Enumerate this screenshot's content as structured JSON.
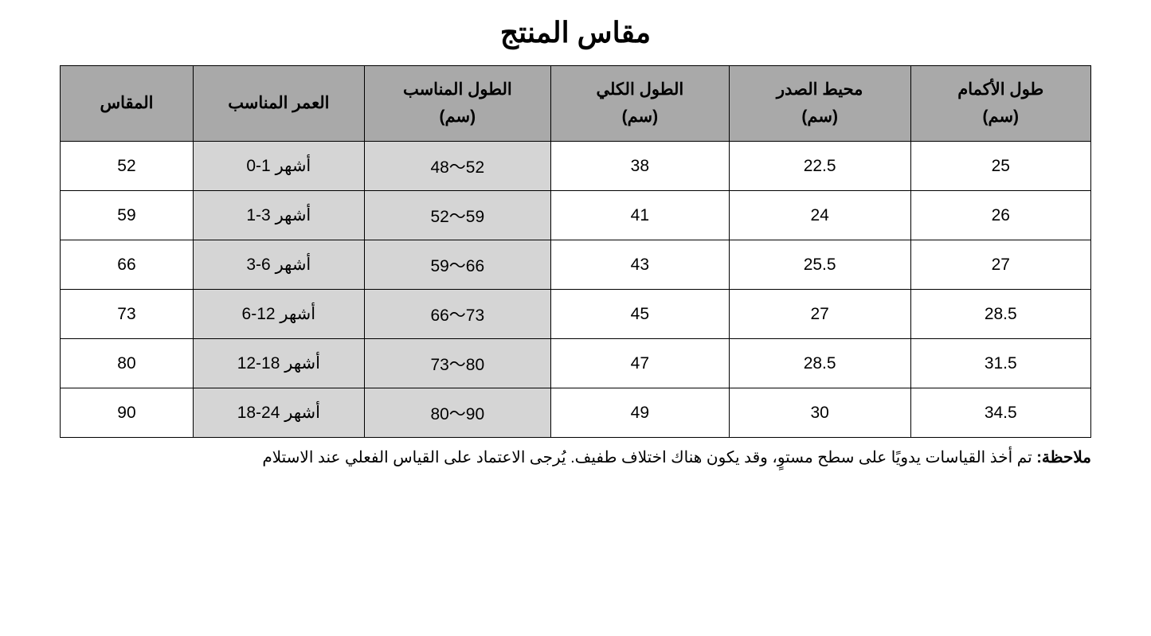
{
  "title": "مقاس المنتج",
  "table": {
    "type": "table",
    "header_bg": "#a9a9a9",
    "shaded_bg": "#d5d5d5",
    "border_color": "#000000",
    "text_color": "#000000",
    "columns": [
      {
        "key": "size",
        "label_line1": "المقاس",
        "label_line2": "",
        "width_pct": 12.9
      },
      {
        "key": "age",
        "label_line1": "العمر المناسب",
        "label_line2": "",
        "width_pct": 16.6,
        "shaded": true
      },
      {
        "key": "length",
        "label_line1": "الطول المناسب",
        "label_line2": "(سم)",
        "width_pct": 18.1,
        "shaded": true
      },
      {
        "key": "total",
        "label_line1": "الطول الكلي",
        "label_line2": "(سم)",
        "width_pct": 17.3
      },
      {
        "key": "chest",
        "label_line1": "محيط الصدر",
        "label_line2": "(سم)",
        "width_pct": 17.6
      },
      {
        "key": "sleeve",
        "label_line1": "طول الأكمام",
        "label_line2": "(سم)",
        "width_pct": 17.5
      }
    ],
    "rows": [
      {
        "size": "52",
        "age": "0-1 أشهر",
        "length": "48～52",
        "total": "38",
        "chest": "22.5",
        "sleeve": "25"
      },
      {
        "size": "59",
        "age": "1-3 أشهر",
        "length": "52～59",
        "total": "41",
        "chest": "24",
        "sleeve": "26"
      },
      {
        "size": "66",
        "age": "3-6 أشهر",
        "length": "59～66",
        "total": "43",
        "chest": "25.5",
        "sleeve": "27"
      },
      {
        "size": "73",
        "age": "6-12 أشهر",
        "length": "66～73",
        "total": "45",
        "chest": "27",
        "sleeve": "28.5"
      },
      {
        "size": "80",
        "age": "12-18 أشهر",
        "length": "73～80",
        "total": "47",
        "chest": "28.5",
        "sleeve": "31.5"
      },
      {
        "size": "90",
        "age": "18-24 أشهر",
        "length": "80～90",
        "total": "49",
        "chest": "30",
        "sleeve": "34.5"
      }
    ]
  },
  "note": {
    "label": "ملاحظة:",
    "text": " تم أخذ القياسات يدويًا على سطح مستوٍ، وقد يكون هناك اختلاف طفيف. يُرجى الاعتماد على القياس الفعلي عند الاستلام"
  }
}
